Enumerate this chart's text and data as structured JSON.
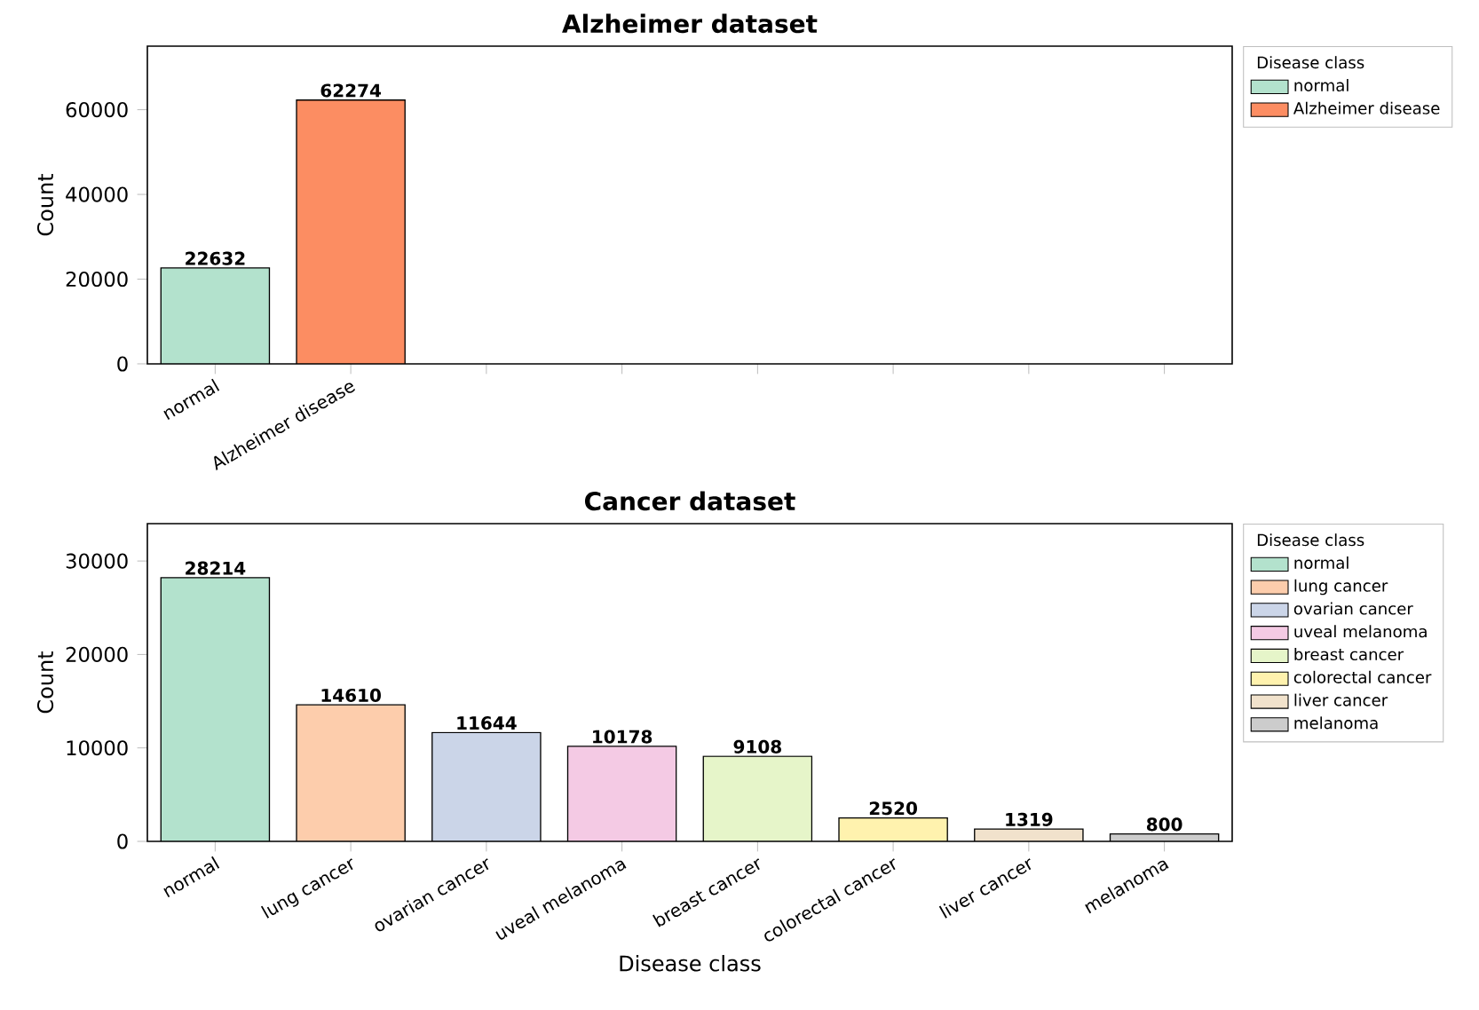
{
  "chart_data": [
    {
      "type": "bar",
      "title": "Alzheimer dataset",
      "ylabel": "Count",
      "categories": [
        "normal",
        "Alzheimer disease",
        null,
        null,
        null,
        null,
        null,
        null
      ],
      "series": [
        {
          "name": "normal",
          "color": "#b3e2cd",
          "values": [
            22632,
            null,
            null,
            null,
            null,
            null,
            null,
            null
          ]
        },
        {
          "name": "Alzheimer disease",
          "color": "#fc8d62",
          "values": [
            null,
            62274,
            null,
            null,
            null,
            null,
            null,
            null
          ]
        }
      ],
      "ylim": [
        0,
        75000
      ],
      "yticks": [
        0,
        20000,
        40000,
        60000
      ],
      "data_labels": true,
      "legend": "top right",
      "legend_title": "Disease class"
    },
    {
      "type": "bar",
      "title": "Cancer dataset",
      "xlabel": "Disease class",
      "ylabel": "Count",
      "categories": [
        "normal",
        "lung cancer",
        "ovarian cancer",
        "uveal melanoma",
        "breast cancer",
        "colorectal cancer",
        "liver cancer",
        "melanoma"
      ],
      "series": [
        {
          "name": "normal",
          "color": "#b3e2cd",
          "values": [
            28214,
            null,
            null,
            null,
            null,
            null,
            null,
            null
          ]
        },
        {
          "name": "lung cancer",
          "color": "#fdcdac",
          "values": [
            null,
            14610,
            null,
            null,
            null,
            null,
            null,
            null
          ]
        },
        {
          "name": "ovarian cancer",
          "color": "#cbd5e8",
          "values": [
            null,
            null,
            11644,
            null,
            null,
            null,
            null,
            null
          ]
        },
        {
          "name": "uveal melanoma",
          "color": "#f4cae4",
          "values": [
            null,
            null,
            null,
            10178,
            null,
            null,
            null,
            null
          ]
        },
        {
          "name": "breast cancer",
          "color": "#e6f5c9",
          "values": [
            null,
            null,
            null,
            null,
            9108,
            null,
            null,
            null
          ]
        },
        {
          "name": "colorectal cancer",
          "color": "#fff2ae",
          "values": [
            null,
            null,
            null,
            null,
            null,
            2520,
            null,
            null
          ]
        },
        {
          "name": "liver cancer",
          "color": "#f1e2cc",
          "values": [
            null,
            null,
            null,
            null,
            null,
            null,
            1319,
            null
          ]
        },
        {
          "name": "melanoma",
          "color": "#cccccc",
          "values": [
            null,
            null,
            null,
            null,
            null,
            null,
            null,
            800
          ]
        }
      ],
      "ylim": [
        0,
        34000
      ],
      "yticks": [
        0,
        10000,
        20000,
        30000
      ],
      "data_labels": true,
      "legend": "top right",
      "legend_title": "Disease class"
    }
  ]
}
